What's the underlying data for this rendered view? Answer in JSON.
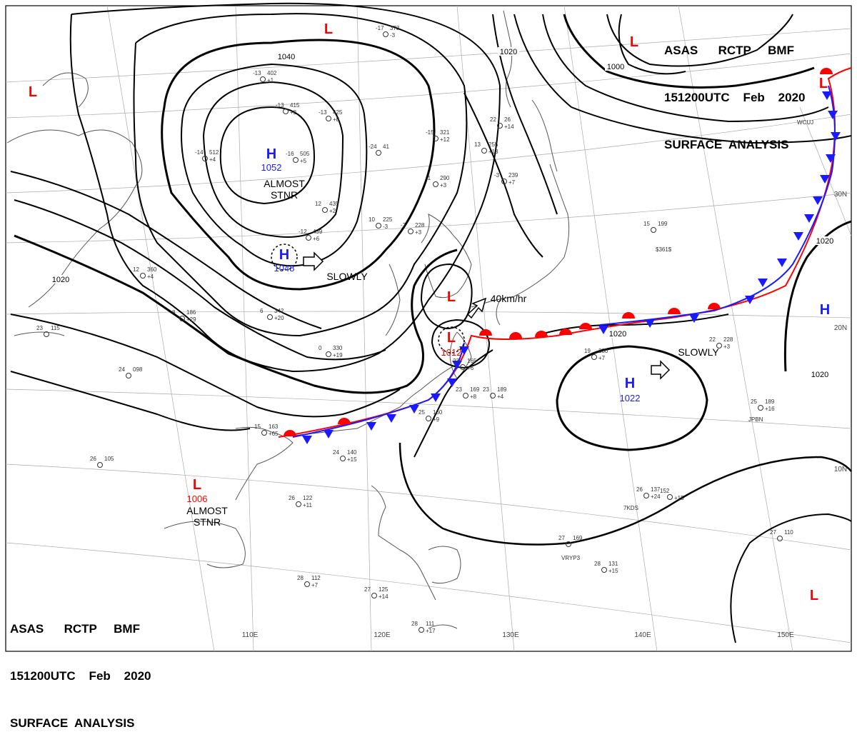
{
  "header": {
    "line1": "ASAS      RCTP     BMF",
    "line2": "151200UTC    Feb    2020",
    "line3": "SURFACE  ANALYSIS"
  },
  "colors": {
    "high": "#1a1aff",
    "low": "#ff0000",
    "isobar": "#000000",
    "coast": "#555555",
    "grid": "#999999"
  },
  "systems": [
    {
      "id": "h1052",
      "letter": "H",
      "value": "1052",
      "color": "high",
      "note": "ALMOST STNR"
    },
    {
      "id": "h1048",
      "letter": "H",
      "value": "1048",
      "color": "high",
      "note": "SLOWLY"
    },
    {
      "id": "h1022",
      "letter": "H",
      "value": "1022",
      "color": "high",
      "note": "SLOWLY"
    },
    {
      "id": "h-east",
      "letter": "H",
      "value": "",
      "color": "high",
      "note": ""
    },
    {
      "id": "l1012",
      "letter": "L",
      "value": "1012",
      "color": "low",
      "note": "40km/hr"
    },
    {
      "id": "l1006",
      "letter": "L",
      "value": "1006",
      "color": "low",
      "note": "ALMOST STNR"
    },
    {
      "id": "l-korea",
      "letter": "L",
      "value": "",
      "color": "low",
      "note": ""
    },
    {
      "id": "l-top",
      "letter": "L",
      "value": "",
      "color": "low",
      "note": ""
    },
    {
      "id": "l-topright",
      "letter": "L",
      "value": "",
      "color": "low",
      "note": ""
    },
    {
      "id": "l-left",
      "letter": "L",
      "value": "",
      "color": "low",
      "note": ""
    },
    {
      "id": "l-far-ne",
      "letter": "L",
      "value": "",
      "color": "low",
      "note": ""
    },
    {
      "id": "l-se",
      "letter": "L",
      "value": "",
      "color": "low",
      "note": ""
    }
  ],
  "isobar_labels": [
    "1040",
    "1020",
    "1000",
    "1020",
    "1020",
    "1020",
    "1020"
  ],
  "longitude_labels": [
    "110E",
    "120E",
    "130E",
    "140E",
    "150E"
  ],
  "latitude_labels": [
    "30N",
    "20N",
    "10N"
  ],
  "station_samples": [
    {
      "t": "-17",
      "p": "373",
      "d": "-3"
    },
    {
      "t": "-13",
      "p": "402",
      "d": "+1"
    },
    {
      "t": "-13",
      "p": "415",
      "d": "+2"
    },
    {
      "t": "-16",
      "p": "505",
      "d": "+5"
    },
    {
      "t": "-14",
      "p": "512",
      "d": "+4"
    },
    {
      "t": "-13",
      "p": "425",
      "d": "+8"
    },
    {
      "t": "-24",
      "p": "41",
      "d": ""
    },
    {
      "t": "-15",
      "p": "321",
      "d": "+12"
    },
    {
      "t": "22",
      "p": "26",
      "d": "+14"
    },
    {
      "t": "13",
      "p": "255",
      "d": "+13"
    },
    {
      "t": "-1",
      "p": "290",
      "d": "+3"
    },
    {
      "t": "-3",
      "p": "239",
      "d": "+7"
    },
    {
      "t": "12",
      "p": "435",
      "d": "+2"
    },
    {
      "t": "-12",
      "p": "439",
      "d": "+6"
    },
    {
      "t": "10",
      "p": "225",
      "d": "-3"
    },
    {
      "t": "-7",
      "p": "228",
      "d": "+3"
    },
    {
      "t": "12",
      "p": "360",
      "d": "+4"
    },
    {
      "t": "6",
      "p": "342",
      "d": "+20"
    },
    {
      "t": "8",
      "p": "186",
      "d": "+29"
    },
    {
      "t": "0",
      "p": "330",
      "d": "+19"
    },
    {
      "t": "24",
      "p": "098",
      "d": ""
    },
    {
      "t": "26",
      "p": "105",
      "d": ""
    },
    {
      "t": "23",
      "p": "115",
      "d": ""
    },
    {
      "t": "15",
      "p": "163",
      "d": "+65"
    },
    {
      "t": "24",
      "p": "140",
      "d": "+15"
    },
    {
      "t": "26",
      "p": "122",
      "d": "+11"
    },
    {
      "t": "23",
      "p": "169",
      "d": "+8"
    },
    {
      "t": "23",
      "p": "189",
      "d": "+4"
    },
    {
      "t": "23",
      "p": "165",
      "d": "+6"
    },
    {
      "t": "25",
      "p": "160",
      "d": "+9"
    },
    {
      "t": "19",
      "p": "230",
      "d": "+7"
    },
    {
      "t": "15",
      "p": "199",
      "d": ""
    },
    {
      "t": "26",
      "p": "137",
      "d": "+24"
    },
    {
      "t": "152",
      "p": "",
      "d": "+15"
    },
    {
      "t": "27",
      "p": "169",
      "d": ""
    },
    {
      "t": "28",
      "p": "131",
      "d": "+15"
    },
    {
      "t": "28",
      "p": "112",
      "d": "+7"
    },
    {
      "t": "27",
      "p": "125",
      "d": "+14"
    },
    {
      "t": "28",
      "p": "111",
      "d": "+17"
    },
    {
      "t": "25",
      "p": "189",
      "d": "+16"
    },
    {
      "t": "27",
      "p": "110",
      "d": ""
    },
    {
      "t": "22",
      "p": "228",
      "d": "+3"
    }
  ],
  "station_ids": [
    "WCUJ",
    "JPBN",
    "7KDS",
    "VRYP3"
  ],
  "misc_text": [
    "$361$"
  ]
}
